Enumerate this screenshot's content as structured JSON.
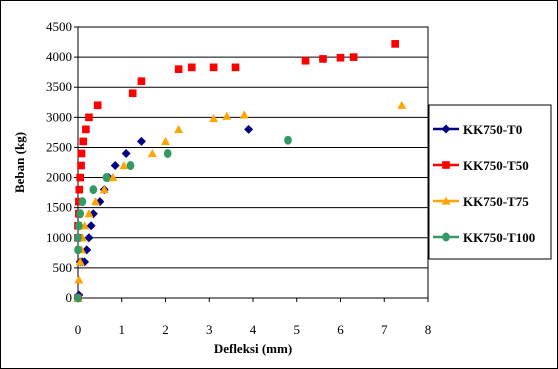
{
  "chart_data": {
    "type": "scatter",
    "title": "",
    "xlabel": "Defleksi (mm)",
    "ylabel": "Beban (kg)",
    "xlim": [
      0,
      8
    ],
    "ylim": [
      0,
      4500
    ],
    "xticks": [
      "0",
      "1",
      "2",
      "3",
      "4",
      "5",
      "6",
      "7",
      "8"
    ],
    "yticks": [
      "0",
      "500",
      "1000",
      "1500",
      "2000",
      "2500",
      "3000",
      "3500",
      "4000",
      "4500"
    ],
    "grid": "horizontal",
    "legend_position": "right",
    "series": [
      {
        "name": "KK750-T0",
        "color": "#000080",
        "marker": "diamond",
        "points": [
          [
            0,
            0
          ],
          [
            0.02,
            50
          ],
          [
            0.05,
            600
          ],
          [
            0.1,
            600
          ],
          [
            0.15,
            600
          ],
          [
            0.2,
            800
          ],
          [
            0.25,
            1000
          ],
          [
            0.3,
            1200
          ],
          [
            0.35,
            1400
          ],
          [
            0.5,
            1600
          ],
          [
            0.6,
            1800
          ],
          [
            0.7,
            2000
          ],
          [
            0.85,
            2200
          ],
          [
            1.1,
            2400
          ],
          [
            1.45,
            2600
          ],
          [
            3.9,
            2800
          ]
        ]
      },
      {
        "name": "KK750-T50",
        "color": "#ff0000",
        "marker": "square",
        "points": [
          [
            0,
            0
          ],
          [
            0,
            1000
          ],
          [
            0,
            1200
          ],
          [
            0.02,
            1400
          ],
          [
            0.02,
            1600
          ],
          [
            0.03,
            1800
          ],
          [
            0.05,
            2000
          ],
          [
            0.07,
            2200
          ],
          [
            0.08,
            2400
          ],
          [
            0.12,
            2600
          ],
          [
            0.18,
            2800
          ],
          [
            0.25,
            3000
          ],
          [
            0.45,
            3200
          ],
          [
            1.25,
            3400
          ],
          [
            1.45,
            3600
          ],
          [
            2.3,
            3800
          ],
          [
            2.6,
            3830
          ],
          [
            3.1,
            3830
          ],
          [
            3.6,
            3830
          ],
          [
            5.2,
            3940
          ],
          [
            5.6,
            3970
          ],
          [
            6.0,
            3990
          ],
          [
            6.3,
            4000
          ],
          [
            7.25,
            4220
          ]
        ]
      },
      {
        "name": "KK750-T75",
        "color": "#ffa500",
        "marker": "triangle",
        "points": [
          [
            0,
            0
          ],
          [
            0.02,
            300
          ],
          [
            0.05,
            600
          ],
          [
            0.08,
            800
          ],
          [
            0.1,
            1000
          ],
          [
            0.15,
            1200
          ],
          [
            0.25,
            1400
          ],
          [
            0.4,
            1600
          ],
          [
            0.6,
            1800
          ],
          [
            0.8,
            2000
          ],
          [
            1.05,
            2200
          ],
          [
            1.7,
            2400
          ],
          [
            2.0,
            2600
          ],
          [
            2.3,
            2800
          ],
          [
            3.1,
            2980
          ],
          [
            3.4,
            3020
          ],
          [
            3.8,
            3040
          ],
          [
            7.4,
            3200
          ]
        ]
      },
      {
        "name": "KK750-T100",
        "color": "#339966",
        "marker": "circle-diamond",
        "points": [
          [
            0,
            0
          ],
          [
            0,
            800
          ],
          [
            0,
            1000
          ],
          [
            0.02,
            1200
          ],
          [
            0.05,
            1400
          ],
          [
            0.1,
            1600
          ],
          [
            0.35,
            1800
          ],
          [
            0.65,
            2000
          ],
          [
            1.2,
            2200
          ],
          [
            2.05,
            2400
          ],
          [
            4.8,
            2620
          ]
        ]
      }
    ]
  }
}
